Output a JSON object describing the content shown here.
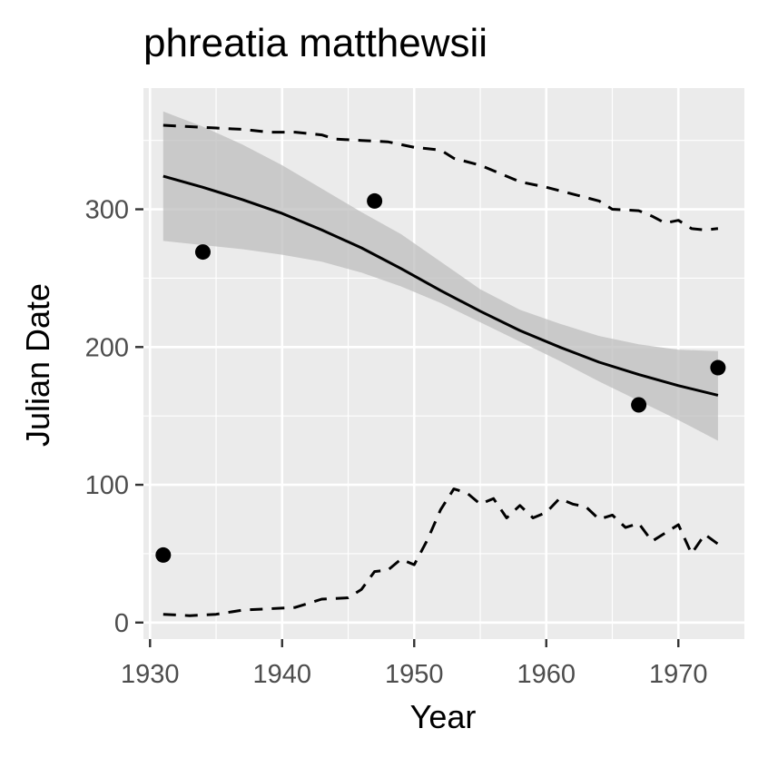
{
  "chart_data": {
    "type": "scatter",
    "title": "phreatia matthewsii",
    "xlabel": "Year",
    "ylabel": "Julian Date",
    "xlim": [
      1929.5,
      1975
    ],
    "ylim": [
      -12,
      388
    ],
    "x_ticks": [
      1930,
      1940,
      1950,
      1960,
      1970
    ],
    "y_ticks": [
      0,
      100,
      200,
      300
    ],
    "x_tick_labels": [
      "1930",
      "1940",
      "1950",
      "1960",
      "1970"
    ],
    "y_tick_labels": [
      "0",
      "100",
      "200",
      "300"
    ],
    "grid": true,
    "legend": "none",
    "colors": {
      "panel": "#ebebeb",
      "grid": "#ffffff",
      "ribbon": "#bdbdbd",
      "line": "#000000",
      "points": "#000000"
    },
    "points": {
      "x": [
        1931,
        1934,
        1947,
        1967,
        1973
      ],
      "y": [
        49,
        269,
        306,
        158,
        185
      ]
    },
    "fit": {
      "x": [
        1931,
        1934,
        1937,
        1940,
        1943,
        1946,
        1949,
        1952,
        1955,
        1958,
        1961,
        1964,
        1967,
        1970,
        1973
      ],
      "y": [
        324,
        316,
        307,
        297,
        285,
        272,
        257,
        241,
        226,
        212,
        200,
        189,
        180,
        172,
        165
      ]
    },
    "ribbon": {
      "x": [
        1931,
        1934,
        1937,
        1940,
        1943,
        1946,
        1949,
        1952,
        1955,
        1958,
        1961,
        1964,
        1967,
        1970,
        1973
      ],
      "lower": [
        277,
        274,
        271,
        267,
        262,
        254,
        244,
        232,
        218,
        204,
        190,
        175,
        161,
        147,
        132
      ],
      "upper": [
        371,
        360,
        347,
        332,
        315,
        298,
        282,
        262,
        242,
        227,
        217,
        208,
        202,
        198,
        197
      ]
    },
    "upper_dashed": {
      "x": [
        1931,
        1933,
        1935,
        1937,
        1939,
        1941,
        1943,
        1944,
        1946,
        1948,
        1950,
        1951,
        1952,
        1953,
        1955,
        1957,
        1958,
        1960,
        1962,
        1964,
        1965,
        1967,
        1968,
        1969,
        1970,
        1971,
        1972,
        1973
      ],
      "y": [
        361,
        360,
        359,
        358,
        356,
        356,
        354,
        351,
        350,
        349,
        345,
        344,
        343,
        337,
        332,
        324,
        320,
        316,
        311,
        306,
        300,
        299,
        295,
        290,
        292,
        286,
        285,
        286
      ]
    },
    "lower_dashed": {
      "x": [
        1931,
        1933,
        1935,
        1937,
        1939,
        1941,
        1943,
        1945,
        1946,
        1947,
        1948,
        1949,
        1950,
        1951,
        1952,
        1953,
        1954,
        1955,
        1956,
        1957,
        1958,
        1959,
        1960,
        1961,
        1962,
        1963,
        1964,
        1965,
        1966,
        1967,
        1968,
        1969,
        1970,
        1971,
        1972,
        1973
      ],
      "y": [
        6,
        5,
        6,
        9,
        10,
        11,
        17,
        18,
        24,
        37,
        38,
        46,
        42,
        60,
        82,
        97,
        94,
        86,
        90,
        76,
        85,
        76,
        80,
        90,
        86,
        84,
        75,
        78,
        69,
        72,
        59,
        65,
        71,
        50,
        64,
        57
      ]
    }
  }
}
